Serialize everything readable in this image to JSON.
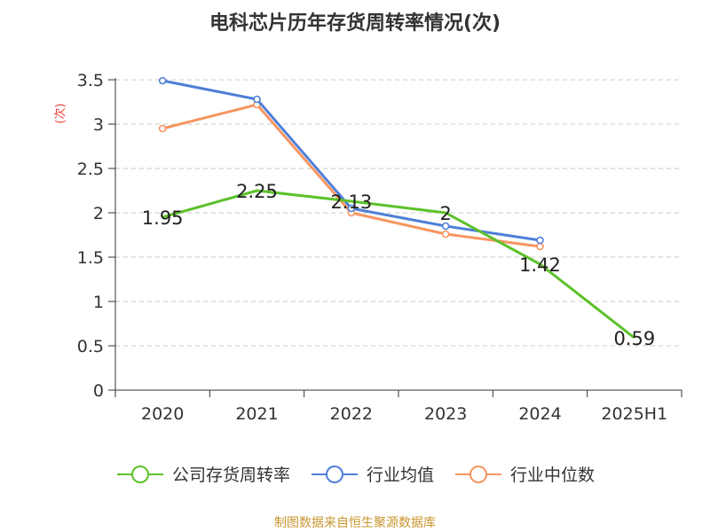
{
  "chart_data": {
    "type": "line",
    "title": "电科芯片历年存货周转率情况(次)",
    "ylabel": "(次)",
    "xlabel": "",
    "categories": [
      "2020",
      "2021",
      "2022",
      "2023",
      "2024",
      "2025H1"
    ],
    "ylim": [
      0,
      3.5
    ],
    "yticks": [
      "0",
      "0.5",
      "1",
      "1.5",
      "2",
      "2.5",
      "3",
      "3.5"
    ],
    "grid": true,
    "legend_position": "bottom",
    "series": [
      {
        "name": "公司存货周转率",
        "color": "#5cc12a",
        "values": [
          1.95,
          2.25,
          2.13,
          2.0,
          1.42,
          0.59
        ],
        "labels": [
          "1.95",
          "2.25",
          "2.13",
          "2",
          "1.42",
          "0.59"
        ]
      },
      {
        "name": "行业均值",
        "color": "#4f7fd8",
        "values": [
          3.49,
          3.28,
          2.05,
          1.85,
          1.69,
          null
        ]
      },
      {
        "name": "行业中位数",
        "color": "#f79560",
        "values": [
          2.95,
          3.22,
          2.0,
          1.76,
          1.62,
          null
        ]
      }
    ]
  },
  "footer": {
    "source": "制图数据来自恒生聚源数据库"
  }
}
